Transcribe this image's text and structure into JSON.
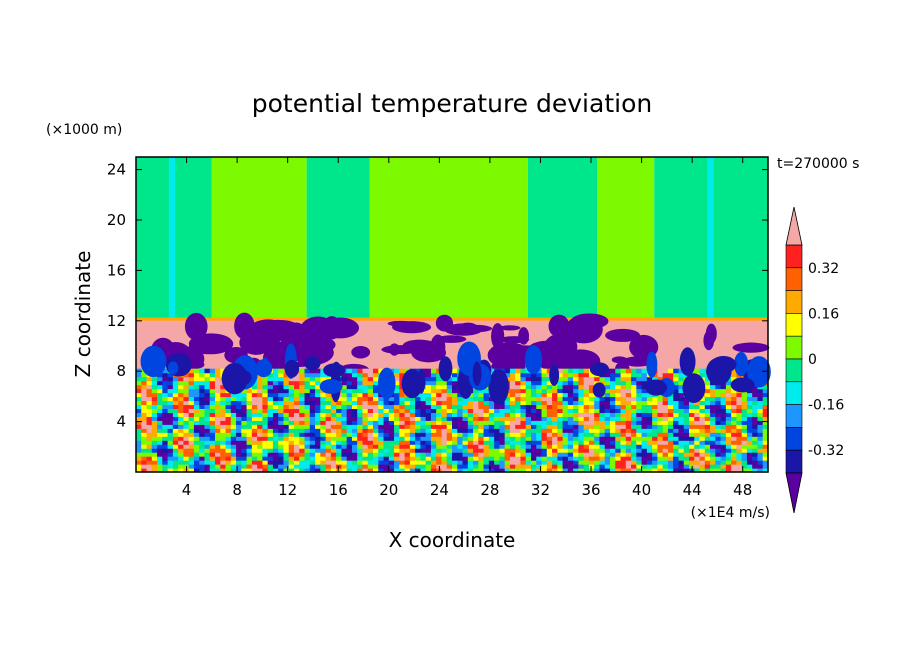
{
  "chart_data": {
    "type": "heatmap",
    "title": "potential temperature deviation",
    "xlabel": "X coordinate",
    "ylabel": "Z coordinate",
    "x_unit": "(×1E4 m/s)",
    "y_unit": "(×1000 m)",
    "time_label": "t=270000 s",
    "xlim": [
      0,
      50
    ],
    "ylim": [
      0,
      25
    ],
    "x_ticks": [
      4,
      8,
      12,
      16,
      20,
      24,
      28,
      32,
      36,
      40,
      44,
      48
    ],
    "y_ticks": [
      4,
      8,
      12,
      16,
      20,
      24
    ],
    "colorbar": {
      "tick_labels": [
        "0.32",
        "0.16",
        "0",
        "-0.16",
        "-0.32"
      ],
      "tick_values": [
        0.32,
        0.16,
        0,
        -0.16,
        -0.32
      ],
      "levels": [
        -0.4,
        -0.32,
        -0.24,
        -0.16,
        -0.08,
        0,
        0.08,
        0.16,
        0.24,
        0.32,
        0.4
      ],
      "colors": [
        "#5a00a0",
        "#1c16a8",
        "#0045e0",
        "#1e96ff",
        "#00ecec",
        "#00e68a",
        "#7dfa00",
        "#ffff00",
        "#ffaa00",
        "#ff6000",
        "#ff2020",
        "#f5a6a6"
      ]
    },
    "layers": [
      {
        "z_range": [
          12,
          25
        ],
        "description_values": "near zero: alternating bands of 0 to 0.08 and -0.08 to 0"
      },
      {
        "z_range": [
          8,
          12
        ],
        "description_values": "above 0.4 with scattered patches below -0.32"
      },
      {
        "z_range": [
          0,
          8
        ],
        "description_values": "turbulent convection, values from -0.4 to 0.4"
      }
    ],
    "upper_bands": [
      {
        "x": [
          0,
          6
        ],
        "level": -0.04
      },
      {
        "x": [
          6,
          13.5
        ],
        "level": 0.04
      },
      {
        "x": [
          13.5,
          18.5
        ],
        "level": -0.04
      },
      {
        "x": [
          18.5,
          31
        ],
        "level": 0.04
      },
      {
        "x": [
          31,
          36.5
        ],
        "level": -0.04
      },
      {
        "x": [
          36.5,
          41
        ],
        "level": 0.04
      },
      {
        "x": [
          41,
          43
        ],
        "level": -0.04
      },
      {
        "x": [
          43,
          50
        ],
        "level": -0.04
      }
    ]
  }
}
